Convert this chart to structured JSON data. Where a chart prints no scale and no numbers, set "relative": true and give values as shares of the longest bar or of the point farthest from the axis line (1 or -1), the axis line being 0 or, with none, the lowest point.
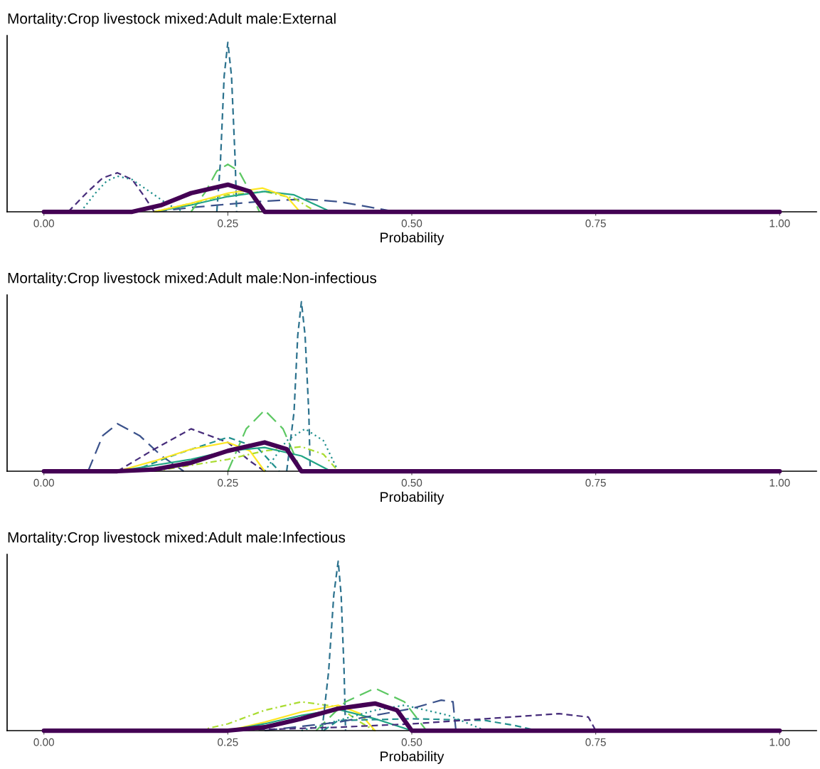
{
  "chart_data": [
    {
      "type": "line",
      "relative": true,
      "title": "Mortality:Crop livestock mixed:Adult male:External",
      "xlabel": "Probability",
      "xlim": [
        -0.05,
        1.05
      ],
      "xticks": [
        {
          "value": 0,
          "label": "0.00"
        },
        {
          "value": 0.25,
          "label": "0.25"
        },
        {
          "value": 0.5,
          "label": "0.50"
        },
        {
          "value": 0.75,
          "label": "0.75"
        },
        {
          "value": 1,
          "label": "1.00"
        }
      ],
      "tick_labels": "x",
      "grid": false,
      "series": [
        {
          "color": "#472d7b",
          "line_style": "dashed",
          "x": [
            0.033,
            0.06,
            0.08,
            0.1,
            0.12,
            0.135,
            0.15
          ],
          "values": [
            0,
            0.12,
            0.2,
            0.23,
            0.19,
            0.1,
            0
          ]
        },
        {
          "color": "#21908d",
          "line_style": "dotted",
          "x": [
            0.05,
            0.07,
            0.085,
            0.1,
            0.12,
            0.15,
            0.17,
            0.19
          ],
          "values": [
            0,
            0.11,
            0.18,
            0.21,
            0.19,
            0.1,
            0.04,
            0
          ]
        },
        {
          "color": "#3b528b",
          "line_style": "longdash",
          "x": [
            0.15,
            0.2,
            0.25,
            0.3,
            0.355,
            0.4,
            0.44,
            0.478
          ],
          "values": [
            0,
            0.025,
            0.045,
            0.063,
            0.075,
            0.06,
            0.03,
            0
          ]
        },
        {
          "color": "#2c728e",
          "line_style": "dashed",
          "x": [
            0.235,
            0.24,
            0.245,
            0.25,
            0.255,
            0.26,
            0.262
          ],
          "values": [
            0,
            0.3,
            0.8,
            1.0,
            0.8,
            0.3,
            0
          ]
        },
        {
          "color": "#5dc863",
          "line_style": "longdash",
          "x": [
            0.2,
            0.22,
            0.235,
            0.25,
            0.265,
            0.28,
            0.293
          ],
          "values": [
            0,
            0.12,
            0.24,
            0.28,
            0.24,
            0.12,
            0
          ]
        },
        {
          "color": "#aadc32",
          "line_style": "dashdot",
          "x": [
            0.15,
            0.2,
            0.25,
            0.3,
            0.34,
            0.37
          ],
          "values": [
            0,
            0.05,
            0.1,
            0.12,
            0.08,
            0
          ]
        },
        {
          "color": "#21a585",
          "line_style": "solid",
          "x": [
            0.15,
            0.2,
            0.25,
            0.3,
            0.34,
            0.37,
            0.39
          ],
          "values": [
            0,
            0.04,
            0.09,
            0.12,
            0.1,
            0.04,
            0
          ]
        },
        {
          "color": "#fde725",
          "line_style": "solid",
          "x": [
            0.15,
            0.2,
            0.25,
            0.297,
            0.33,
            0.348
          ],
          "values": [
            0,
            0.05,
            0.11,
            0.14,
            0.09,
            0
          ]
        },
        {
          "color": "#440154",
          "line_style": "solid",
          "x": [
            0,
            0.12,
            0.16,
            0.2,
            0.25,
            0.28,
            0.3,
            1
          ],
          "values": [
            0,
            0,
            0.04,
            0.11,
            0.16,
            0.12,
            0,
            0
          ]
        }
      ]
    },
    {
      "type": "line",
      "relative": true,
      "title": "Mortality:Crop livestock mixed:Adult male:Non-infectious",
      "xlabel": "Probability",
      "xlim": [
        -0.05,
        1.05
      ],
      "xticks": [
        {
          "value": 0,
          "label": "0.00"
        },
        {
          "value": 0.25,
          "label": "0.25"
        },
        {
          "value": 0.5,
          "label": "0.50"
        },
        {
          "value": 0.75,
          "label": "0.75"
        },
        {
          "value": 1,
          "label": "1.00"
        }
      ],
      "tick_labels": "x",
      "grid": false,
      "series": [
        {
          "color": "#3b528b",
          "line_style": "longdash",
          "x": [
            0.06,
            0.08,
            0.1,
            0.13,
            0.16,
            0.19
          ],
          "values": [
            0,
            0.21,
            0.28,
            0.21,
            0.09,
            0
          ]
        },
        {
          "color": "#472d7b",
          "line_style": "dashed",
          "x": [
            0.1,
            0.15,
            0.2,
            0.25,
            0.28,
            0.3
          ],
          "values": [
            0,
            0.13,
            0.25,
            0.17,
            0.06,
            0
          ]
        },
        {
          "color": "#21908d",
          "line_style": "dashed",
          "x": [
            0.12,
            0.18,
            0.25,
            0.29,
            0.32
          ],
          "values": [
            0,
            0.1,
            0.2,
            0.14,
            0
          ]
        },
        {
          "color": "#5dc863",
          "line_style": "longdash",
          "x": [
            0.25,
            0.275,
            0.3,
            0.325,
            0.35
          ],
          "values": [
            0,
            0.25,
            0.36,
            0.25,
            0
          ]
        },
        {
          "color": "#2c728e",
          "line_style": "dashed",
          "x": [
            0.33,
            0.34,
            0.345,
            0.35,
            0.355,
            0.36,
            0.362
          ],
          "values": [
            0,
            0.35,
            0.8,
            1.0,
            0.8,
            0.35,
            0
          ]
        },
        {
          "color": "#21908d",
          "line_style": "dotted",
          "x": [
            0.3,
            0.33,
            0.355,
            0.38,
            0.4
          ],
          "values": [
            0,
            0.18,
            0.25,
            0.18,
            0
          ]
        },
        {
          "color": "#aadc32",
          "line_style": "dashdot",
          "x": [
            0.15,
            0.25,
            0.3,
            0.35,
            0.38,
            0.4
          ],
          "values": [
            0,
            0.07,
            0.12,
            0.145,
            0.1,
            0
          ]
        },
        {
          "color": "#fde725",
          "line_style": "solid",
          "x": [
            0.1,
            0.15,
            0.2,
            0.25,
            0.28,
            0.3
          ],
          "values": [
            0,
            0.06,
            0.13,
            0.17,
            0.12,
            0
          ]
        },
        {
          "color": "#21a585",
          "line_style": "solid",
          "x": [
            0.1,
            0.2,
            0.25,
            0.3,
            0.35,
            0.39
          ],
          "values": [
            0,
            0.07,
            0.12,
            0.14,
            0.09,
            0
          ]
        },
        {
          "color": "#440154",
          "line_style": "solid",
          "x": [
            0,
            0.1,
            0.15,
            0.2,
            0.25,
            0.3,
            0.33,
            0.35,
            1
          ],
          "values": [
            0,
            0,
            0.01,
            0.05,
            0.12,
            0.17,
            0.13,
            0,
            0
          ]
        }
      ]
    },
    {
      "type": "line",
      "relative": true,
      "title": "Mortality:Crop livestock mixed:Adult male:Infectious",
      "xlabel": "Probability",
      "xlim": [
        -0.05,
        1.05
      ],
      "xticks": [
        {
          "value": 0,
          "label": "0.00"
        },
        {
          "value": 0.25,
          "label": "0.25"
        },
        {
          "value": 0.5,
          "label": "0.50"
        },
        {
          "value": 0.75,
          "label": "0.75"
        },
        {
          "value": 1,
          "label": "1.00"
        }
      ],
      "tick_labels": "x",
      "grid": false,
      "series": [
        {
          "color": "#aadc32",
          "line_style": "dashdot",
          "x": [
            0.21,
            0.25,
            0.3,
            0.35,
            0.4,
            0.43,
            0.45
          ],
          "values": [
            0,
            0.04,
            0.12,
            0.17,
            0.14,
            0.05,
            0
          ]
        },
        {
          "color": "#fde725",
          "line_style": "solid",
          "x": [
            0.25,
            0.3,
            0.35,
            0.4,
            0.43,
            0.45
          ],
          "values": [
            0,
            0.05,
            0.11,
            0.15,
            0.1,
            0
          ]
        },
        {
          "color": "#21a585",
          "line_style": "solid",
          "x": [
            0.25,
            0.3,
            0.35,
            0.4,
            0.45,
            0.5
          ],
          "values": [
            0,
            0.04,
            0.09,
            0.125,
            0.07,
            0
          ]
        },
        {
          "color": "#2c728e",
          "line_style": "dashed",
          "x": [
            0.378,
            0.387,
            0.394,
            0.4,
            0.404,
            0.408,
            0.41
          ],
          "values": [
            0,
            0.35,
            0.8,
            1.0,
            0.8,
            0.35,
            0
          ]
        },
        {
          "color": "#5dc863",
          "line_style": "longdash",
          "x": [
            0.37,
            0.41,
            0.45,
            0.49,
            0.52
          ],
          "values": [
            0,
            0.17,
            0.25,
            0.17,
            0
          ]
        },
        {
          "color": "#21908d",
          "line_style": "dotted",
          "x": [
            0.35,
            0.4,
            0.45,
            0.49,
            0.55,
            0.6
          ],
          "values": [
            0,
            0.06,
            0.12,
            0.15,
            0.09,
            0
          ]
        },
        {
          "color": "#21908d",
          "line_style": "dashed",
          "x": [
            0.38,
            0.4,
            0.5,
            0.6,
            0.64,
            0.67
          ],
          "values": [
            0,
            0.06,
            0.07,
            0.06,
            0.03,
            0
          ]
        },
        {
          "color": "#3b528b",
          "line_style": "longdash",
          "x": [
            0.3,
            0.4,
            0.5,
            0.54,
            0.556,
            0.56
          ],
          "values": [
            0,
            0.05,
            0.13,
            0.18,
            0.17,
            0
          ]
        },
        {
          "color": "#472d7b",
          "line_style": "dashed",
          "x": [
            0.25,
            0.4,
            0.5,
            0.6,
            0.7,
            0.74,
            0.75
          ],
          "values": [
            0,
            0.02,
            0.04,
            0.07,
            0.1,
            0.08,
            0
          ]
        },
        {
          "color": "#440154",
          "line_style": "solid",
          "x": [
            0,
            0.25,
            0.3,
            0.35,
            0.4,
            0.45,
            0.48,
            0.5,
            1
          ],
          "values": [
            0,
            0,
            0.02,
            0.07,
            0.13,
            0.16,
            0.12,
            0,
            0
          ]
        }
      ]
    }
  ]
}
